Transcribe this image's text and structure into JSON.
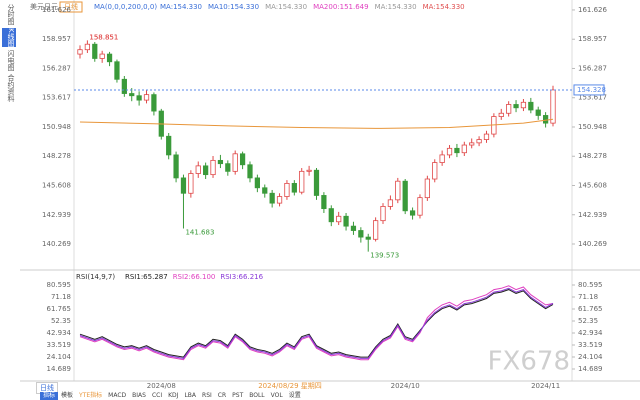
{
  "toolbar": {
    "left": [
      "分时图",
      "K线图",
      "闪电图",
      "合约资料"
    ],
    "period": "日线",
    "bottom_tabs": [
      "指标",
      "模板"
    ],
    "indicators": [
      "YTE指标",
      "MACD",
      "BIAS",
      "CCI",
      "KDJ",
      "LBA",
      "RSI",
      "CR",
      "PST",
      "BOLL",
      "VOL",
      "设置"
    ],
    "crosshair_date": "2024/08/29 星期四"
  },
  "watermark": "FX678",
  "chart_data": [
    {
      "type": "candlestick",
      "title": "美元日元",
      "period": "日线",
      "indicator": "MA(0,0,0,200,0,0)",
      "indicator_values": [
        {
          "text": "MA:154.330",
          "color": "#3a6fd8"
        },
        {
          "text": "MA10:154.330",
          "color": "#3a6fd8"
        },
        {
          "text": "MA:154.330",
          "color": "#999999"
        },
        {
          "text": "MA200:151.649",
          "color": "#e040c0"
        },
        {
          "text": "MA:154.330",
          "color": "#999999"
        },
        {
          "text": "MA:154.330",
          "color": "#e05050"
        }
      ],
      "categories": [
        null,
        null,
        null,
        null,
        null,
        null,
        null,
        null,
        null,
        null,
        null,
        "2024/08",
        null,
        null,
        null,
        null,
        null,
        null,
        null,
        null,
        null,
        null,
        null,
        null,
        null,
        null,
        null,
        null,
        null,
        null,
        null,
        null,
        null,
        null,
        null,
        null,
        null,
        null,
        null,
        null,
        null,
        null,
        null,
        null,
        "2024/10",
        null,
        null,
        null,
        null,
        null,
        null,
        null,
        null,
        null,
        null,
        null,
        null,
        null,
        null,
        null,
        null,
        null,
        null,
        "2024/11",
        null
      ],
      "open": [
        157.6,
        158.0,
        158.5,
        157.2,
        157.6,
        156.9,
        155.3,
        154.0,
        153.8,
        153.4,
        153.9,
        152.4,
        150.1,
        148.4,
        146.3,
        144.9,
        146.7,
        147.4,
        146.6,
        147.9,
        147.6,
        146.9,
        148.5,
        147.5,
        146.3,
        145.4,
        144.9,
        144.0,
        144.6,
        145.8,
        145.0,
        146.9,
        147.0,
        144.7,
        143.5,
        142.3,
        142.8,
        141.9,
        141.5,
        140.9,
        140.7,
        142.4,
        143.7,
        144.3,
        146.0,
        143.3,
        142.9,
        144.5,
        146.2,
        147.7,
        148.4,
        149.0,
        148.6,
        149.3,
        149.5,
        149.8,
        150.3,
        151.9,
        152.2,
        153.0,
        152.7,
        153.2,
        152.5,
        152.0,
        151.3
      ],
      "high": [
        158.4,
        158.851,
        158.7,
        157.9,
        157.8,
        157.1,
        155.6,
        154.5,
        154.2,
        154.3,
        154.1,
        152.6,
        150.4,
        148.7,
        146.6,
        147.0,
        147.8,
        147.7,
        148.3,
        148.4,
        147.9,
        148.8,
        148.7,
        147.8,
        146.6,
        145.7,
        145.2,
        144.9,
        146.1,
        146.1,
        147.2,
        147.4,
        147.2,
        145.0,
        143.8,
        143.2,
        143.1,
        142.3,
        141.8,
        141.2,
        142.7,
        144.0,
        144.7,
        146.3,
        146.2,
        143.6,
        144.8,
        146.5,
        148.0,
        148.8,
        149.3,
        149.4,
        149.6,
        149.9,
        150.1,
        150.6,
        152.2,
        152.6,
        153.3,
        153.4,
        153.5,
        153.6,
        152.8,
        152.3,
        154.708
      ],
      "low": [
        157.2,
        157.7,
        156.9,
        156.8,
        156.5,
        155.0,
        153.7,
        153.3,
        152.9,
        153.1,
        152.0,
        149.8,
        148.0,
        145.9,
        141.683,
        144.5,
        146.3,
        146.2,
        146.3,
        147.2,
        146.5,
        146.6,
        147.1,
        145.9,
        145.0,
        144.5,
        143.6,
        143.7,
        144.3,
        144.7,
        144.8,
        146.5,
        144.3,
        143.1,
        141.9,
        142.0,
        141.5,
        141.1,
        140.4,
        139.573,
        140.5,
        142.1,
        143.4,
        144.0,
        143.0,
        142.5,
        142.6,
        144.2,
        145.9,
        147.4,
        148.1,
        148.2,
        148.3,
        149.0,
        149.2,
        149.5,
        150.0,
        151.6,
        151.9,
        152.3,
        152.4,
        152.2,
        151.6,
        150.9,
        151.0
      ],
      "close": [
        158.0,
        158.5,
        157.2,
        157.6,
        156.9,
        155.3,
        154.0,
        153.8,
        153.4,
        153.9,
        152.4,
        150.1,
        148.4,
        146.3,
        144.9,
        146.7,
        147.4,
        146.6,
        147.9,
        147.6,
        146.9,
        148.5,
        147.5,
        146.3,
        145.4,
        144.9,
        144.0,
        144.6,
        145.8,
        145.0,
        146.9,
        147.0,
        144.7,
        143.5,
        142.3,
        142.8,
        141.9,
        141.5,
        140.9,
        140.7,
        142.4,
        143.7,
        144.3,
        146.0,
        143.3,
        142.9,
        144.5,
        146.2,
        147.7,
        148.4,
        149.0,
        148.6,
        149.3,
        149.5,
        149.8,
        150.3,
        151.9,
        152.2,
        153.0,
        152.7,
        153.2,
        152.5,
        152.0,
        151.3,
        154.33
      ],
      "up_color": "#e04848",
      "down_color": "#3a9a3a",
      "overlay": {
        "color": "#e8963a",
        "x": [
          0,
          10,
          20,
          30,
          40,
          50,
          60,
          64
        ],
        "values": [
          151.4,
          151.25,
          151.05,
          150.9,
          150.82,
          150.9,
          151.3,
          151.649
        ]
      },
      "last_price": 154.328,
      "ylim": [
        138.08,
        162.17
      ],
      "yticks": [
        161.626,
        158.957,
        156.287,
        153.617,
        150.948,
        148.278,
        145.608,
        142.939,
        140.269
      ]
    },
    {
      "type": "line",
      "title": "RSI(14,9,7)",
      "series": [
        {
          "label": "RSI1:65.287",
          "color": "#222222",
          "values": [
            42,
            40,
            38,
            40,
            37,
            34,
            32,
            33,
            31,
            33,
            30,
            28,
            26,
            25,
            24,
            32,
            35,
            33,
            38,
            37,
            33,
            42,
            38,
            32,
            30,
            29,
            27,
            30,
            35,
            32,
            40,
            42,
            33,
            30,
            27,
            28,
            26,
            25,
            24,
            24,
            32,
            38,
            41,
            50,
            40,
            38,
            45,
            52,
            58,
            62,
            64,
            61,
            65,
            66,
            68,
            70,
            74,
            75,
            77,
            74,
            76,
            70,
            66,
            62,
            65.287
          ]
        },
        {
          "label": "RSI2:66.100",
          "color": "#e040c0",
          "values": [
            40,
            38,
            36,
            38,
            35,
            32,
            30,
            31,
            29,
            31,
            28,
            26,
            24,
            23,
            22,
            30,
            33,
            31,
            36,
            35,
            31,
            40,
            36,
            30,
            28,
            27,
            25,
            28,
            33,
            30,
            38,
            40,
            31,
            28,
            25,
            26,
            24,
            23,
            22,
            22,
            30,
            36,
            39,
            48,
            38,
            36,
            43,
            55,
            61,
            65,
            67,
            64,
            68,
            69,
            71,
            73,
            77,
            78,
            80,
            77,
            79,
            73,
            69,
            65,
            66.1
          ]
        },
        {
          "label": "RSI3:66.216",
          "color": "#8a3ad8",
          "values": [
            41,
            39,
            37,
            39,
            36,
            33,
            31,
            32,
            30,
            32,
            29,
            27,
            25,
            24,
            23,
            31,
            34,
            32,
            37,
            36,
            32,
            41,
            37,
            31,
            29,
            28,
            26,
            29,
            34,
            31,
            39,
            41,
            32,
            29,
            26,
            27,
            25,
            24,
            23,
            23,
            31,
            37,
            40,
            49,
            39,
            37,
            44,
            53,
            59,
            63,
            65,
            62,
            66,
            67,
            69,
            71,
            75,
            76,
            78,
            75,
            77,
            71,
            67,
            63,
            66.216
          ]
        }
      ],
      "ylim": [
        6.06,
        84.52
      ],
      "yticks": [
        80.595,
        71.18,
        61.765,
        52.35,
        42.934,
        33.519,
        24.104,
        14.689
      ]
    }
  ]
}
